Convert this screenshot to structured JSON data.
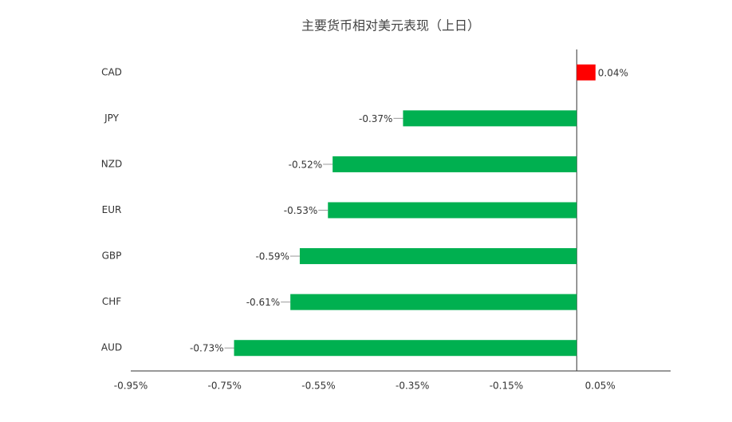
{
  "chart_data": {
    "type": "hbar",
    "title": "主要货币相对美元表现（上日）",
    "categories": [
      "CAD",
      "JPY",
      "NZD",
      "EUR",
      "GBP",
      "CHF",
      "AUD"
    ],
    "values": [
      0.04,
      -0.37,
      -0.52,
      -0.53,
      -0.59,
      -0.61,
      -0.73
    ],
    "value_labels": [
      "0.04%",
      "-0.37%",
      "-0.52%",
      "-0.53%",
      "-0.59%",
      "-0.61%",
      "-0.73%"
    ],
    "colors": [
      "#ff0000",
      "#00b050",
      "#00b050",
      "#00b050",
      "#00b050",
      "#00b050",
      "#00b050"
    ],
    "xlim": [
      -0.95,
      0.2
    ],
    "xticks": [
      {
        "value": -0.95,
        "label": "-0.95%"
      },
      {
        "value": -0.75,
        "label": "-0.75%"
      },
      {
        "value": -0.55,
        "label": "-0.55%"
      },
      {
        "value": -0.35,
        "label": "-0.35%"
      },
      {
        "value": -0.15,
        "label": "-0.15%"
      },
      {
        "value": 0.05,
        "label": "0.05%"
      }
    ],
    "grid": false
  }
}
